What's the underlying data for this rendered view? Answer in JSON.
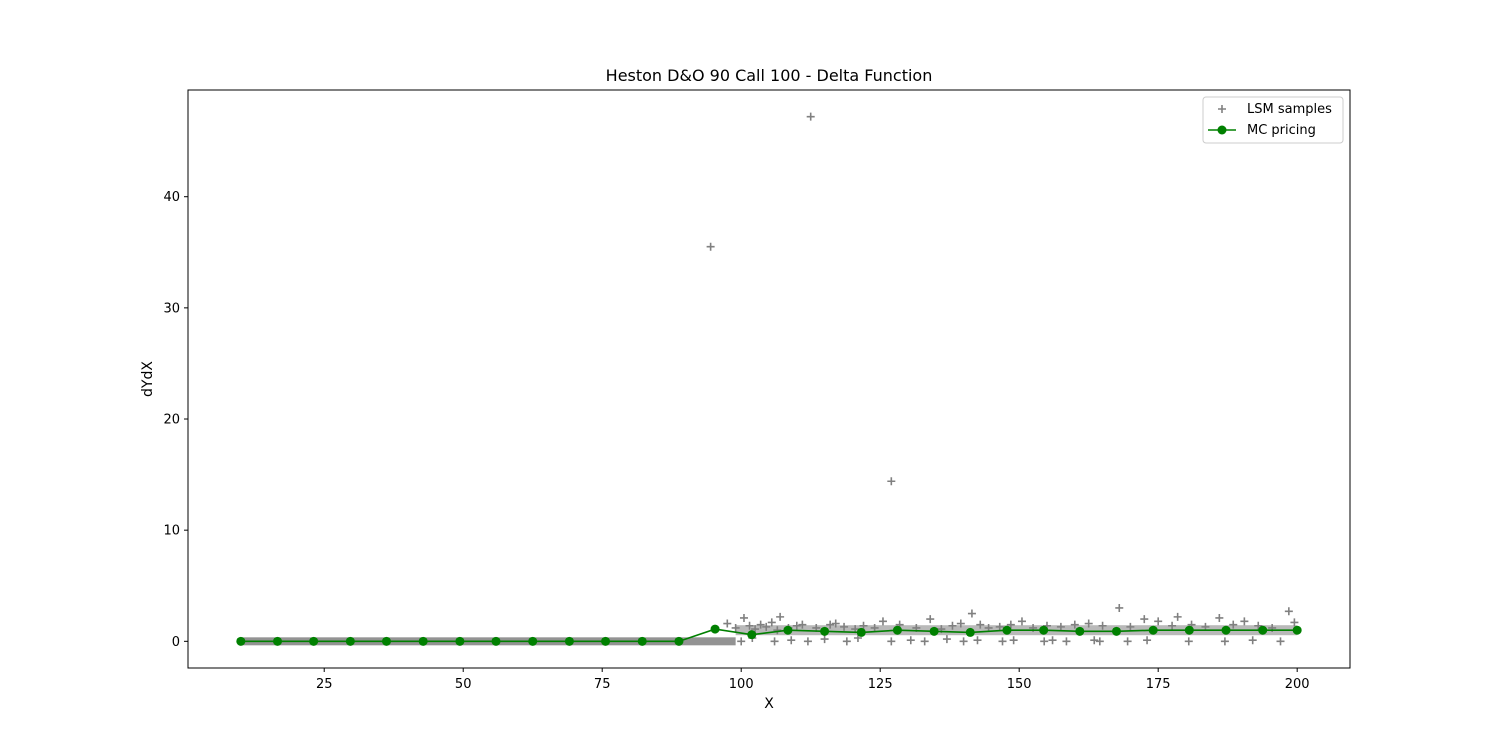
{
  "chart_data": {
    "type": "scatter",
    "title": "Heston D&O 90 Call 100 - Delta Function",
    "xlabel": "X",
    "ylabel": "dYdX",
    "xlim": [
      0.5,
      209.5
    ],
    "ylim": [
      -2.4,
      49.6
    ],
    "xticks": [
      25,
      50,
      75,
      100,
      125,
      150,
      175,
      200
    ],
    "yticks": [
      0,
      10,
      20,
      30,
      40
    ],
    "grid": false,
    "legend_position": "top-right",
    "series": [
      {
        "name": "LSM samples",
        "kind": "scatter",
        "marker": "+",
        "color": "#808080",
        "points": [
          [
            97.5,
            1.6
          ],
          [
            99.0,
            1.2
          ],
          [
            100.5,
            2.1
          ],
          [
            101.5,
            1.4
          ],
          [
            102.5,
            1.1
          ],
          [
            103.5,
            1.5
          ],
          [
            104.5,
            1.3
          ],
          [
            105.5,
            1.7
          ],
          [
            106.5,
            1.0
          ],
          [
            107.0,
            2.2
          ],
          [
            108.5,
            1.2
          ],
          [
            110.0,
            1.4
          ],
          [
            111.0,
            1.5
          ],
          [
            113.5,
            1.2
          ],
          [
            116.0,
            1.5
          ],
          [
            117.0,
            1.6
          ],
          [
            118.5,
            1.3
          ],
          [
            120.5,
            1.1
          ],
          [
            122.0,
            1.4
          ],
          [
            124.0,
            1.2
          ],
          [
            125.5,
            1.8
          ],
          [
            128.5,
            1.5
          ],
          [
            131.5,
            1.2
          ],
          [
            134.0,
            2.0
          ],
          [
            136.0,
            1.1
          ],
          [
            138.0,
            1.4
          ],
          [
            139.5,
            1.6
          ],
          [
            141.5,
            2.5
          ],
          [
            143.0,
            1.5
          ],
          [
            144.5,
            1.2
          ],
          [
            146.5,
            1.3
          ],
          [
            148.5,
            1.5
          ],
          [
            150.5,
            1.8
          ],
          [
            152.5,
            1.2
          ],
          [
            155.0,
            1.4
          ],
          [
            157.5,
            1.3
          ],
          [
            160.0,
            1.5
          ],
          [
            162.5,
            1.6
          ],
          [
            165.0,
            1.4
          ],
          [
            168.0,
            3.0
          ],
          [
            170.0,
            1.3
          ],
          [
            172.5,
            2.0
          ],
          [
            175.0,
            1.8
          ],
          [
            177.5,
            1.4
          ],
          [
            178.5,
            2.2
          ],
          [
            181.0,
            1.5
          ],
          [
            183.5,
            1.3
          ],
          [
            186.0,
            2.1
          ],
          [
            188.5,
            1.5
          ],
          [
            190.5,
            1.8
          ],
          [
            193.0,
            1.4
          ],
          [
            195.5,
            1.2
          ],
          [
            198.5,
            2.7
          ],
          [
            199.5,
            1.7
          ],
          [
            100.0,
            0.0
          ],
          [
            102.0,
            0.3
          ],
          [
            106.0,
            0.0
          ],
          [
            109.0,
            0.1
          ],
          [
            112.0,
            0.0
          ],
          [
            115.0,
            0.2
          ],
          [
            119.0,
            0.0
          ],
          [
            121.0,
            0.3
          ],
          [
            127.0,
            0.0
          ],
          [
            130.5,
            0.1
          ],
          [
            133.0,
            0.0
          ],
          [
            137.0,
            0.2
          ],
          [
            140.0,
            0.0
          ],
          [
            142.5,
            0.1
          ],
          [
            147.0,
            0.0
          ],
          [
            149.0,
            0.1
          ],
          [
            154.5,
            0.0
          ],
          [
            156.0,
            0.1
          ],
          [
            158.5,
            0.0
          ],
          [
            163.5,
            0.1
          ],
          [
            164.5,
            0.0
          ],
          [
            169.5,
            0.0
          ],
          [
            173.0,
            0.1
          ],
          [
            180.5,
            0.0
          ],
          [
            187.0,
            0.0
          ],
          [
            192.0,
            0.1
          ],
          [
            197.0,
            0.0
          ],
          [
            112.5,
            47.2
          ],
          [
            94.5,
            35.5
          ],
          [
            127.0,
            14.4
          ]
        ]
      },
      {
        "name": "MC pricing",
        "kind": "line",
        "marker": "o",
        "color": "#008000",
        "x": [
          10.0,
          16.6,
          23.1,
          29.7,
          36.2,
          42.8,
          49.4,
          55.9,
          62.5,
          69.1,
          75.6,
          82.2,
          88.8,
          95.3,
          101.9,
          108.4,
          115.0,
          121.6,
          128.1,
          134.7,
          141.2,
          147.8,
          154.4,
          160.9,
          167.5,
          174.1,
          180.6,
          187.2,
          193.8,
          200.0
        ],
        "y": [
          0.0,
          0.0,
          0.0,
          0.0,
          0.0,
          0.0,
          0.0,
          0.0,
          0.0,
          0.0,
          0.0,
          0.0,
          0.0,
          1.1,
          0.6,
          1.0,
          0.9,
          0.8,
          1.0,
          0.9,
          0.8,
          1.0,
          1.0,
          0.9,
          0.9,
          1.0,
          1.0,
          1.0,
          1.0,
          1.0
        ]
      }
    ]
  }
}
